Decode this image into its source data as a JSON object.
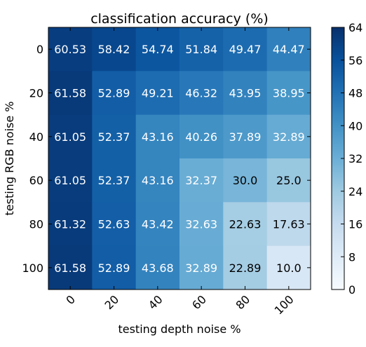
{
  "chart_data": {
    "type": "heatmap",
    "title": "classification accuracy (%)",
    "xlabel": "testing depth noise %",
    "ylabel": "testing RGB noise %",
    "x_categories": [
      "0",
      "20",
      "40",
      "60",
      "80",
      "100"
    ],
    "y_categories": [
      "0",
      "20",
      "40",
      "60",
      "80",
      "100"
    ],
    "values": [
      [
        60.53,
        58.42,
        54.74,
        51.84,
        49.47,
        44.47
      ],
      [
        61.58,
        52.89,
        49.21,
        46.32,
        43.95,
        38.95
      ],
      [
        61.05,
        52.37,
        43.16,
        40.26,
        37.89,
        32.89
      ],
      [
        61.05,
        52.37,
        43.16,
        32.37,
        30.0,
        25.0
      ],
      [
        61.32,
        52.63,
        43.42,
        32.63,
        22.63,
        17.63
      ],
      [
        61.58,
        52.89,
        43.68,
        32.89,
        22.89,
        10.0
      ]
    ],
    "value_labels": [
      [
        "60.53",
        "58.42",
        "54.74",
        "51.84",
        "49.47",
        "44.47"
      ],
      [
        "61.58",
        "52.89",
        "49.21",
        "46.32",
        "43.95",
        "38.95"
      ],
      [
        "61.05",
        "52.37",
        "43.16",
        "40.26",
        "37.89",
        "32.89"
      ],
      [
        "61.05",
        "52.37",
        "43.16",
        "32.37",
        "30.0",
        "25.0"
      ],
      [
        "61.32",
        "52.63",
        "43.42",
        "32.63",
        "22.63",
        "17.63"
      ],
      [
        "61.58",
        "52.89",
        "43.68",
        "32.89",
        "22.89",
        "10.0"
      ]
    ],
    "colorbar": {
      "colormap": "Blues",
      "range": [
        0,
        64
      ],
      "ticks": [
        "0",
        "8",
        "16",
        "24",
        "32",
        "40",
        "48",
        "56",
        "64"
      ]
    },
    "dark_text_threshold": 32,
    "grid": false
  }
}
